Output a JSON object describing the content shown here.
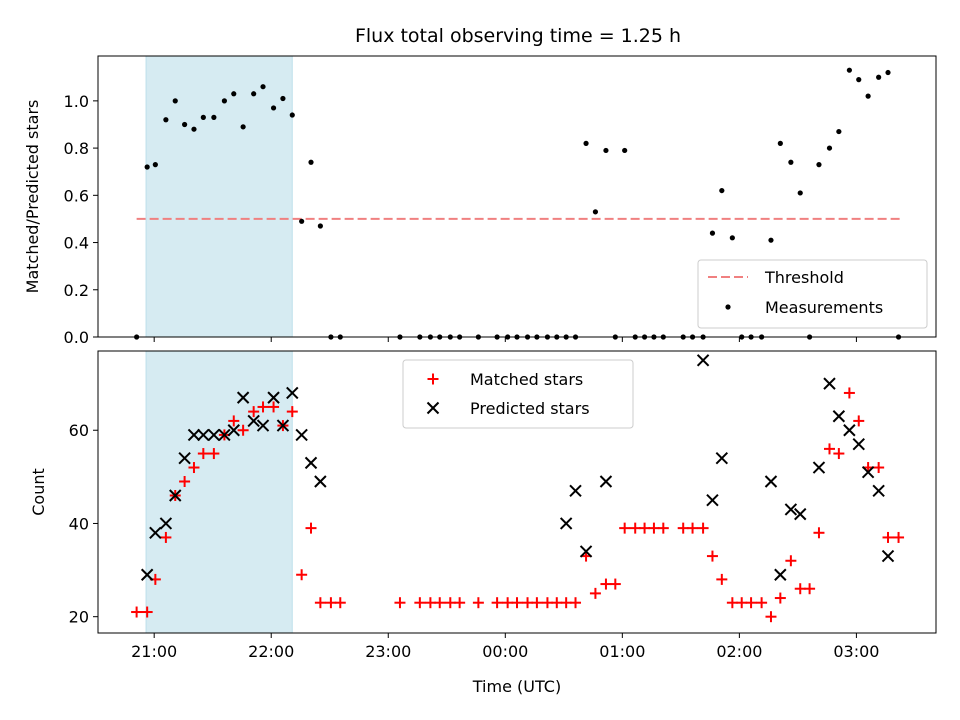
{
  "chart_data": {
    "type": "scatter",
    "title": "Flux total observing time = 1.25 h",
    "xlabel": "Time (UTC)",
    "x_unit": "hours since 21:00 UTC",
    "xlim": [
      -0.48,
      6.68
    ],
    "xtick_values": [
      0,
      1,
      2,
      3,
      4,
      5,
      6
    ],
    "xtick_labels": [
      "21:00",
      "22:00",
      "23:00",
      "00:00",
      "01:00",
      "02:00",
      "03:00"
    ],
    "shaded_region": {
      "x_start": -0.07,
      "x_end": 1.18,
      "color": "#add8e6"
    },
    "top": {
      "ylabel": "Matched/Predicted stars",
      "ylim": [
        0,
        1.19
      ],
      "ytick_values": [
        0,
        0.2,
        0.4,
        0.6,
        0.8,
        1.0
      ],
      "ytick_labels": [
        "0.0",
        "0.2",
        "0.4",
        "0.6",
        "0.8",
        "1.0"
      ],
      "legend_position": "lower-right",
      "threshold": {
        "name": "Threshold",
        "y": 0.5,
        "x_start": -0.15,
        "x_end": 6.37,
        "color": "#f08080"
      },
      "measurements": {
        "name": "Measurements",
        "color": "#000000",
        "x": [
          -0.15,
          -0.06,
          0.01,
          0.1,
          0.18,
          0.26,
          0.34,
          0.42,
          0.51,
          0.6,
          0.68,
          0.76,
          0.85,
          0.93,
          1.02,
          1.1,
          1.18,
          1.26,
          1.34,
          1.42,
          1.51,
          1.59,
          2.1,
          2.27,
          2.36,
          2.44,
          2.53,
          2.61,
          2.77,
          2.93,
          3.02,
          3.1,
          3.19,
          3.27,
          3.36,
          3.44,
          3.52,
          3.6,
          3.69,
          3.77,
          3.86,
          3.94,
          4.02,
          4.11,
          4.19,
          4.27,
          4.35,
          4.52,
          4.6,
          4.69,
          4.77,
          4.85,
          4.94,
          5.02,
          5.1,
          5.19,
          5.27,
          5.35,
          5.44,
          5.52,
          5.6,
          5.68,
          5.77,
          5.85,
          5.94,
          6.02,
          6.1,
          6.19,
          6.27,
          6.36
        ],
        "y": [
          0,
          0.72,
          0.73,
          0.92,
          1.0,
          0.9,
          0.88,
          0.93,
          0.93,
          1.0,
          1.03,
          0.89,
          1.03,
          1.06,
          0.97,
          1.01,
          0.94,
          0.49,
          0.74,
          0.47,
          0,
          0,
          0,
          0,
          0,
          0,
          0,
          0,
          0,
          0,
          0,
          0,
          0,
          0,
          0,
          0,
          0,
          0,
          0.82,
          0.53,
          0.79,
          0,
          0.79,
          0,
          0,
          0,
          0,
          0,
          0,
          0,
          0.44,
          0.62,
          0.42,
          0,
          0,
          0,
          0.41,
          0.82,
          0.74,
          0.61,
          0,
          0.73,
          0.8,
          0.87,
          1.13,
          1.09,
          1.02,
          1.1,
          1.12,
          0
        ]
      }
    },
    "bottom": {
      "ylabel": "Count",
      "ylim": [
        16.5,
        77
      ],
      "ytick_values": [
        20,
        40,
        60
      ],
      "ytick_labels": [
        "20",
        "40",
        "60"
      ],
      "legend_position": "upper-center",
      "matched": {
        "name": "Matched stars",
        "color": "#ff0000",
        "x": [
          -0.15,
          -0.06,
          0.01,
          0.1,
          0.18,
          0.26,
          0.34,
          0.42,
          0.51,
          0.6,
          0.68,
          0.76,
          0.85,
          0.93,
          1.02,
          1.1,
          1.18,
          1.26,
          1.34,
          1.42,
          1.51,
          1.59,
          2.1,
          2.27,
          2.36,
          2.44,
          2.53,
          2.61,
          2.77,
          2.93,
          3.02,
          3.1,
          3.19,
          3.27,
          3.36,
          3.44,
          3.52,
          3.6,
          3.69,
          3.77,
          3.86,
          3.94,
          4.02,
          4.11,
          4.19,
          4.27,
          4.35,
          4.52,
          4.6,
          4.69,
          4.77,
          4.85,
          4.94,
          5.02,
          5.1,
          5.19,
          5.27,
          5.35,
          5.44,
          5.52,
          5.6,
          5.68,
          5.77,
          5.85,
          5.94,
          6.02,
          6.1,
          6.19,
          6.27,
          6.36
        ],
        "y": [
          21,
          21,
          28,
          37,
          46,
          49,
          52,
          55,
          55,
          59,
          62,
          60,
          64,
          65,
          65,
          61,
          64,
          29,
          39,
          23,
          23,
          23,
          23,
          23,
          23,
          23,
          23,
          23,
          23,
          23,
          23,
          23,
          23,
          23,
          23,
          23,
          23,
          23,
          33,
          25,
          27,
          27,
          39,
          39,
          39,
          39,
          39,
          39,
          39,
          39,
          33,
          28,
          23,
          23,
          23,
          23,
          20,
          24,
          32,
          26,
          26,
          38,
          56,
          55,
          68,
          62,
          52,
          52,
          37,
          37
        ]
      },
      "predicted": {
        "name": "Predicted stars",
        "color": "#000000",
        "x": [
          -0.06,
          0.01,
          0.1,
          0.18,
          0.26,
          0.34,
          0.42,
          0.51,
          0.6,
          0.68,
          0.76,
          0.85,
          0.93,
          1.02,
          1.1,
          1.18,
          1.26,
          1.34,
          1.42,
          3.52,
          3.6,
          3.69,
          3.86,
          4.69,
          4.77,
          4.85,
          5.27,
          5.35,
          5.44,
          5.52,
          5.68,
          5.77,
          5.85,
          5.94,
          6.02,
          6.1,
          6.19,
          6.27
        ],
        "y": [
          29,
          38,
          40,
          46,
          54,
          59,
          59,
          59,
          59,
          60,
          67,
          62,
          61,
          67,
          61,
          68,
          59,
          53,
          49,
          40,
          47,
          34,
          49,
          75,
          45,
          54,
          49,
          29,
          43,
          42,
          52,
          70,
          63,
          60,
          57,
          51,
          47,
          33
        ]
      }
    }
  }
}
